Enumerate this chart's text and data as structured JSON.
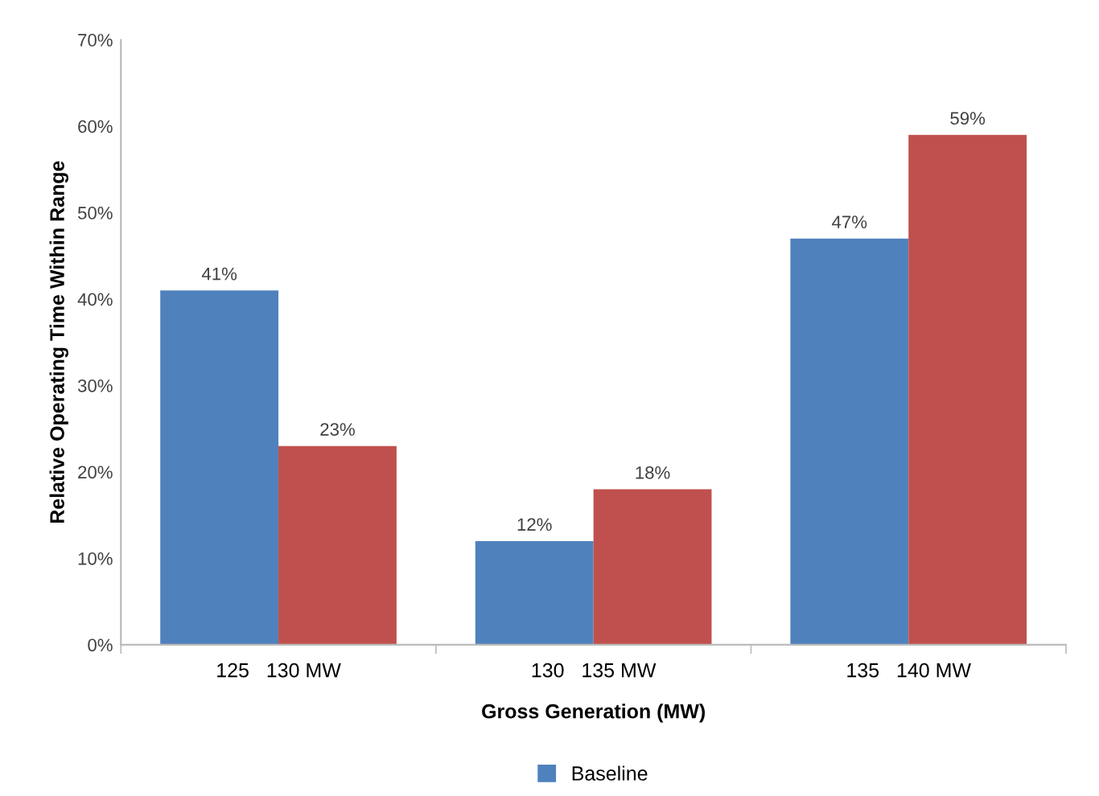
{
  "chart_data": {
    "type": "bar",
    "xlabel": "Gross Generation (MW)",
    "ylabel": "Relative Operating Time Within Range",
    "categories": [
      "125   130 MW",
      "130   135 MW",
      "135   140 MW"
    ],
    "series": [
      {
        "name": "Baseline",
        "color": "#4f81bd",
        "values": [
          41,
          12,
          47
        ]
      },
      {
        "color": "#c0504d",
        "values": [
          23,
          18,
          59
        ]
      }
    ],
    "ylim": [
      0,
      70
    ],
    "yticks": [
      {
        "value": 0,
        "label": "0%"
      },
      {
        "value": 10,
        "label": "10%"
      },
      {
        "value": 20,
        "label": "20%"
      },
      {
        "value": 30,
        "label": "30%"
      },
      {
        "value": 40,
        "label": "40%"
      },
      {
        "value": 50,
        "label": "50%"
      },
      {
        "value": 60,
        "label": "60%"
      },
      {
        "value": 70,
        "label": "70%"
      }
    ],
    "value_labels": [
      [
        "41%",
        "12%",
        "47%"
      ],
      [
        "23%",
        "18%",
        "59%"
      ]
    ],
    "grid": false,
    "legend": "bottom"
  }
}
